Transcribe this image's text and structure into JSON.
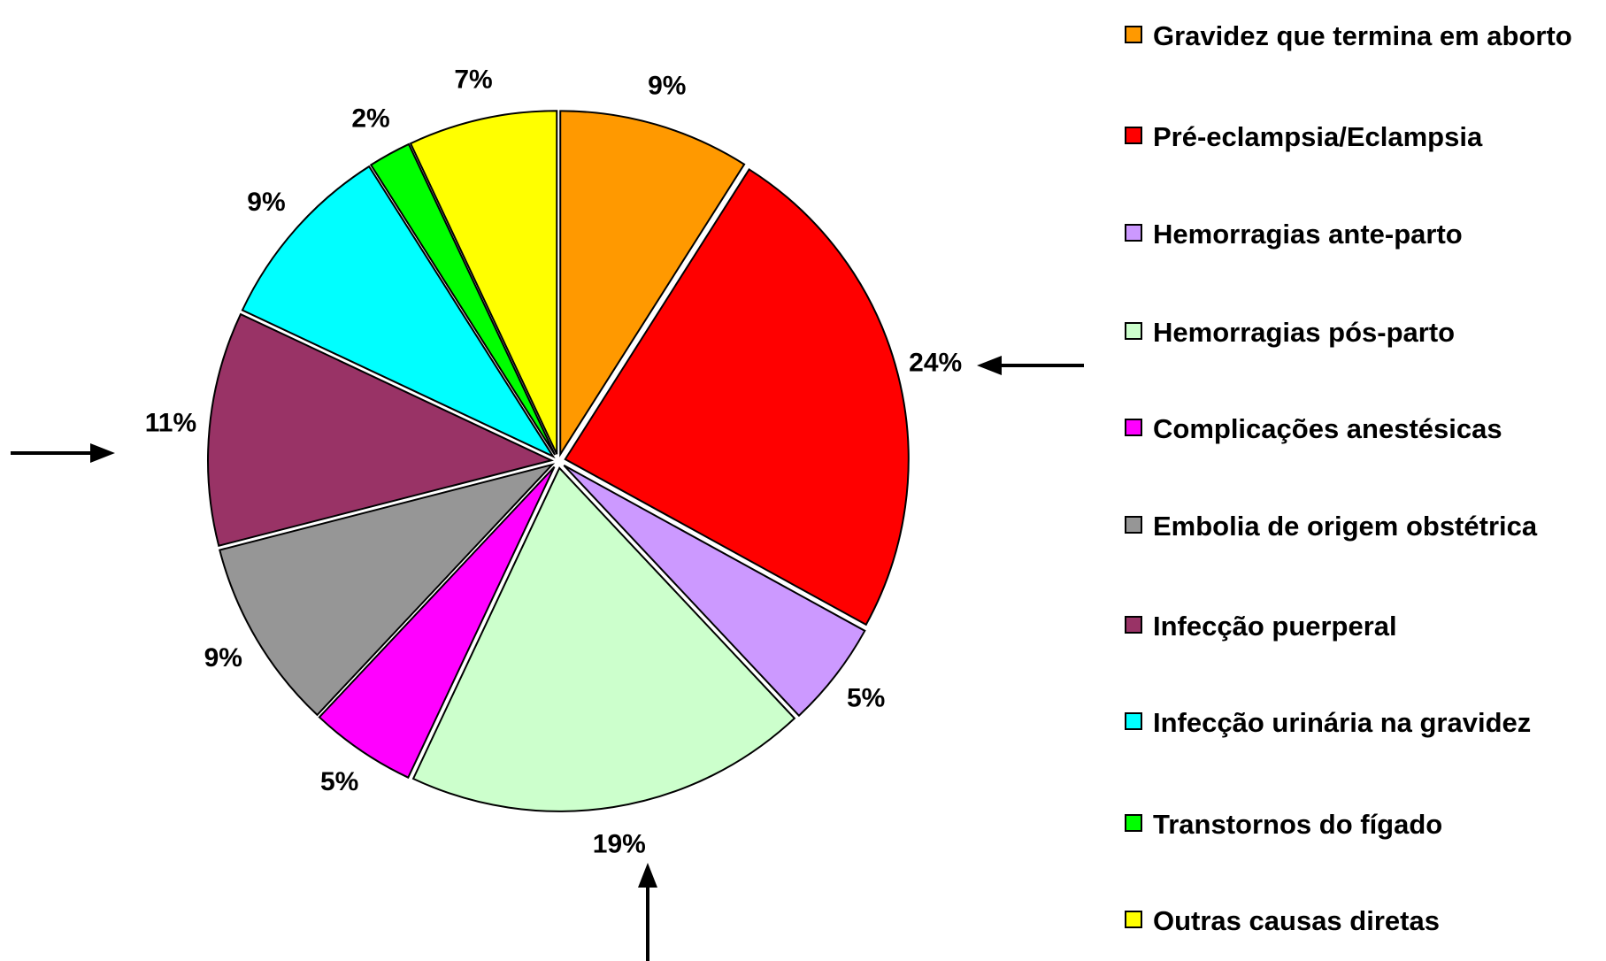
{
  "chart_data": {
    "type": "pie",
    "categories": [
      "Gravidez que termina em aborto",
      "Pré-eclampsia/Eclampsia",
      "Hemorragias ante-parto",
      "Hemorragias pós-parto",
      "Complicações anestésicas",
      "Embolia de origem obstétrica",
      "Infecção puerperal",
      "Infecção urinária na gravidez",
      "Transtornos do fígado",
      "Outras causas diretas"
    ],
    "values": [
      9,
      24,
      5,
      19,
      5,
      9,
      11,
      9,
      2,
      7
    ],
    "value_labels": [
      "9%",
      "24%",
      "5%",
      "19%",
      "5%",
      "9%",
      "11%",
      "9%",
      "2%",
      "7%"
    ],
    "colors": [
      "#ff9900",
      "#ff0000",
      "#cc99ff",
      "#ccffcc",
      "#ff00ff",
      "#969696",
      "#993366",
      "#00ffff",
      "#00ff00",
      "#ffff00"
    ],
    "legend": "right"
  }
}
